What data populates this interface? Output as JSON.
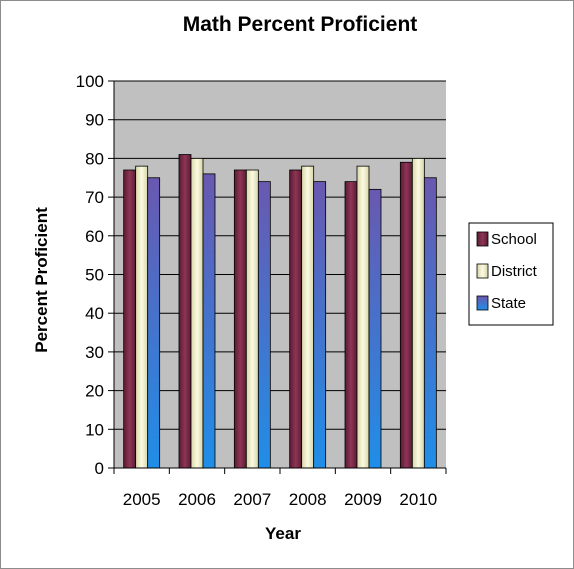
{
  "chart_data": {
    "type": "bar",
    "title": "Math Percent Proficient",
    "xlabel": "Year",
    "ylabel": "Percent Proficient",
    "categories": [
      "2005",
      "2006",
      "2007",
      "2008",
      "2009",
      "2010"
    ],
    "ylim": [
      0,
      100
    ],
    "yticks": [
      0,
      10,
      20,
      30,
      40,
      50,
      60,
      70,
      80,
      90,
      100
    ],
    "grid": "horizontal",
    "plot_background": "#c0c0c0",
    "legend_position": "right",
    "series": [
      {
        "name": "School",
        "color": "#7a2a46",
        "values": [
          77,
          81,
          77,
          77,
          74,
          79
        ]
      },
      {
        "name": "District",
        "color": "#f2f0c8",
        "values": [
          78,
          80,
          77,
          78,
          78,
          80
        ]
      },
      {
        "name": "State",
        "color": "#3f6fc4",
        "values": [
          75,
          76,
          74,
          74,
          72,
          75
        ]
      }
    ]
  }
}
